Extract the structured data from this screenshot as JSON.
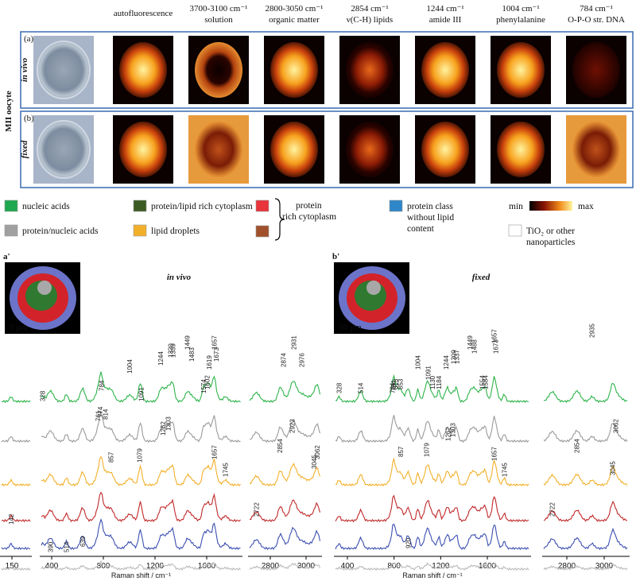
{
  "side_label": "MII oocyte",
  "columns": [
    {
      "line1": "autofluorescence"
    },
    {
      "line1": "3700-3100 cm⁻¹",
      "line2": "solution"
    },
    {
      "line1": "2800-3050 cm⁻¹",
      "line2": "organic matter"
    },
    {
      "line1": "2854 cm⁻¹",
      "line2": "ν(C-H) lipids"
    },
    {
      "line1": "1244 cm⁻¹",
      "line2": "amide III"
    },
    {
      "line1": "1004 cm⁻¹",
      "line2": "phenylalanine"
    },
    {
      "line1": "784 cm⁻¹",
      "line2": "O-P-O str. DNA"
    }
  ],
  "rows": [
    {
      "label": "(a)",
      "state": "in vivo"
    },
    {
      "label": "(b)",
      "state": "fixed"
    }
  ],
  "legend": [
    {
      "text": "nucleic acids",
      "color": "#1fa84f"
    },
    {
      "text": "protein/lipid rich cytoplasm",
      "color": "#3c5a23"
    },
    {
      "text": "protein/nucleic acids",
      "color": "#a0a0a0"
    },
    {
      "text": "lipid droplets",
      "color": "#f2b02a"
    },
    {
      "text": "protein class without lipid content",
      "lines": [
        "protein class",
        "without lipid",
        "content"
      ],
      "color": "#2f86c9"
    },
    {
      "lines": [
        "TiO₂ or other",
        "nanoparticles"
      ],
      "color": "#ffffff"
    }
  ],
  "protein_group": {
    "lines": [
      "protein",
      "rich cytoplasm"
    ],
    "colors": [
      "#e8343a",
      "#a0502a"
    ]
  },
  "colorbar": {
    "min": "min",
    "max": "max"
  },
  "axis_label": "Raman shift / cm⁻¹",
  "spectra": [
    {
      "label": "a'",
      "title": "in vivo",
      "inset_scale": "9 µm",
      "axes": [
        {
          "ticks": [
            150
          ],
          "peaks": [
            142
          ]
        },
        {
          "ticks": [
            400,
            800,
            1200,
            1600
          ],
          "peaks": [
            328,
            774,
            761,
            784,
            814,
            1004,
            1091,
            1244,
            1320,
            1339,
            1449,
            1483,
            1574,
            1602,
            1619,
            1657,
            1673,
            857,
            1079,
            1262,
            1303,
            1657,
            1745,
            390,
            514,
            639
          ]
        },
        {
          "ticks": [
            2800,
            3000
          ],
          "peaks": [
            2874,
            2931,
            2976,
            2854,
            2923,
            3045,
            3062,
            2722
          ]
        }
      ]
    },
    {
      "label": "b'",
      "title": "fixed",
      "inset_scale": "10 µm",
      "axes": [
        {
          "ticks": [
            400,
            800,
            1200,
            1600
          ],
          "peaks": [
            328,
            514,
            784,
            794,
            813,
            853,
            1004,
            1091,
            1130,
            1184,
            1244,
            1309,
            1337,
            1449,
            1488,
            1657,
            1673,
            1554,
            1584,
            857,
            1079,
            1262,
            1303,
            1657,
            1745,
            920
          ]
        },
        {
          "ticks": [
            2800,
            3000
          ],
          "peaks": [
            2935,
            2854,
            3062,
            3045,
            2722
          ]
        }
      ]
    }
  ]
}
